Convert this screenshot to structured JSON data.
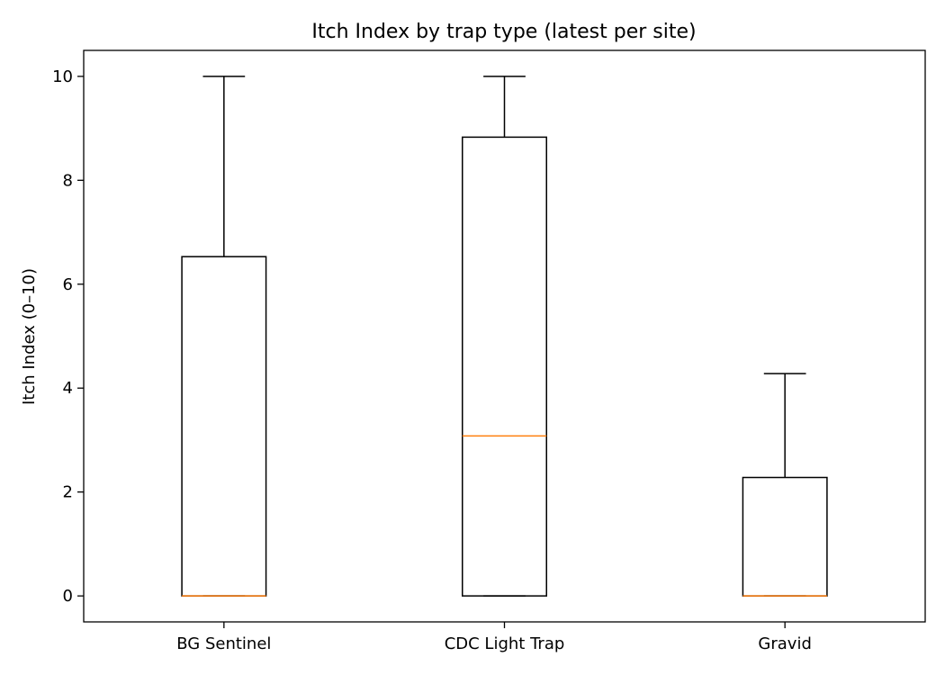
{
  "chart_data": {
    "type": "box",
    "title": "Itch Index by trap type (latest per site)",
    "xlabel": "",
    "ylabel": "Itch Index (0–10)",
    "ylim": [
      -0.5,
      10.5
    ],
    "yticks": [
      0,
      2,
      4,
      6,
      8,
      10
    ],
    "grid": false,
    "legend": "none",
    "categories": [
      "BG Sentinel",
      "CDC Light Trap",
      "Gravid"
    ],
    "boxes": [
      {
        "category": "BG Sentinel",
        "whisker_low": 0,
        "q1": 0,
        "median": 0,
        "q3": 6.53,
        "whisker_high": 10
      },
      {
        "category": "CDC Light Trap",
        "whisker_low": 0,
        "q1": 0,
        "median": 3.08,
        "q3": 8.83,
        "whisker_high": 10
      },
      {
        "category": "Gravid",
        "whisker_low": 0,
        "q1": 0,
        "median": 0,
        "q3": 2.28,
        "whisker_high": 4.28
      }
    ],
    "colors": {
      "box": "#000000",
      "median": "#ff7f0e"
    }
  }
}
